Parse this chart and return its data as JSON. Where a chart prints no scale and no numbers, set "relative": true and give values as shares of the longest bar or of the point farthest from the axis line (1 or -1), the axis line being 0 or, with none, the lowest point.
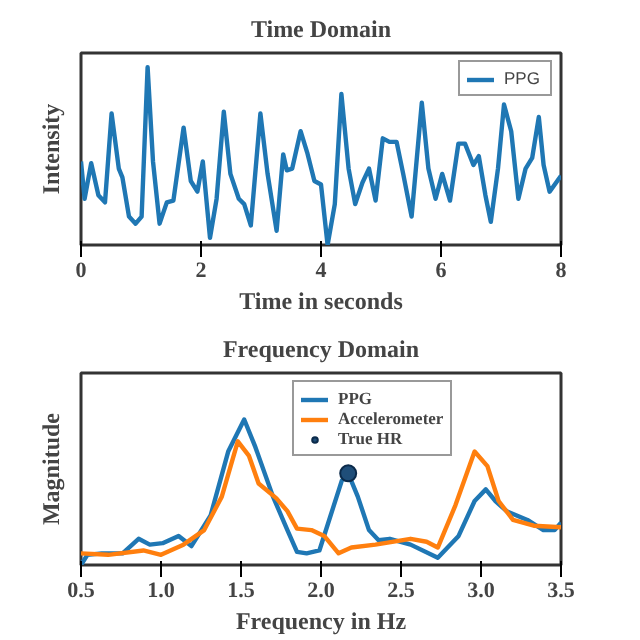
{
  "chart_data": [
    {
      "type": "line",
      "title": "Time Domain",
      "xlabel": "Time in seconds",
      "ylabel": "Intensity",
      "relative": true,
      "xlim": [
        0,
        8
      ],
      "xticks": [
        0,
        2,
        4,
        6,
        8
      ],
      "grid": false,
      "legend": "top right",
      "series": [
        {
          "name": "PPG",
          "color": "#1f77b4",
          "x": [
            0,
            0.06,
            0.17,
            0.29,
            0.4,
            0.51,
            0.63,
            0.69,
            0.8,
            0.91,
            1.01,
            1.11,
            1.2,
            1.31,
            1.43,
            1.54,
            1.71,
            1.83,
            1.94,
            2.03,
            2.15,
            2.26,
            2.38,
            2.49,
            2.63,
            2.72,
            2.83,
            2.99,
            3.11,
            3.26,
            3.37,
            3.43,
            3.52,
            3.66,
            3.77,
            3.89,
            4.0,
            4.11,
            4.23,
            4.34,
            4.46,
            4.57,
            4.69,
            4.8,
            4.91,
            5.03,
            5.14,
            5.26,
            5.37,
            5.51,
            5.68,
            5.79,
            5.91,
            6.02,
            6.15,
            6.29,
            6.4,
            6.54,
            6.63,
            6.74,
            6.83,
            6.95,
            7.05,
            7.17,
            7.29,
            7.41,
            7.52,
            7.63,
            7.71,
            7.81,
            8.0
          ],
          "values": [
            0.47,
            0.26,
            0.46,
            0.28,
            0.24,
            0.74,
            0.43,
            0.38,
            0.16,
            0.12,
            0.16,
            1.0,
            0.47,
            0.12,
            0.24,
            0.25,
            0.66,
            0.36,
            0.3,
            0.47,
            0.04,
            0.26,
            0.75,
            0.4,
            0.26,
            0.23,
            0.11,
            0.74,
            0.4,
            0.08,
            0.51,
            0.42,
            0.43,
            0.64,
            0.52,
            0.36,
            0.34,
            0.0,
            0.23,
            0.85,
            0.43,
            0.23,
            0.35,
            0.43,
            0.25,
            0.6,
            0.58,
            0.58,
            0.4,
            0.16,
            0.8,
            0.43,
            0.26,
            0.4,
            0.25,
            0.57,
            0.57,
            0.45,
            0.5,
            0.28,
            0.13,
            0.43,
            0.79,
            0.64,
            0.26,
            0.43,
            0.49,
            0.72,
            0.45,
            0.3,
            0.39
          ]
        }
      ]
    },
    {
      "type": "line",
      "title": "Frequency Domain",
      "xlabel": "Frequency in Hz",
      "ylabel": "Magnitude",
      "relative": true,
      "xlim": [
        0.5,
        3.5
      ],
      "xticks": [
        0.5,
        {
          "value": 1,
          "label": "1.0"
        },
        1.5,
        {
          "value": 2,
          "label": "2.0"
        },
        2.5,
        {
          "value": 3,
          "label": "3.0"
        },
        3.5
      ],
      "grid": false,
      "legend": "top",
      "series": [
        {
          "name": "PPG",
          "color": "#1f77b4",
          "x": [
            0.5,
            0.54,
            0.63,
            0.76,
            0.86,
            0.93,
            1.01,
            1.11,
            1.19,
            1.31,
            1.42,
            1.52,
            1.59,
            1.7,
            1.79,
            1.85,
            1.91,
            1.99,
            2.06,
            2.13,
            2.17,
            2.23,
            2.3,
            2.36,
            2.43,
            2.56,
            2.73,
            2.86,
            2.96,
            3.03,
            3.09,
            3.16,
            3.29,
            3.39,
            3.46,
            3.5
          ],
          "values": [
            0.0,
            0.07,
            0.08,
            0.08,
            0.18,
            0.14,
            0.15,
            0.2,
            0.13,
            0.34,
            0.78,
            1.0,
            0.81,
            0.47,
            0.24,
            0.09,
            0.08,
            0.1,
            0.34,
            0.58,
            0.63,
            0.47,
            0.24,
            0.17,
            0.18,
            0.14,
            0.05,
            0.2,
            0.44,
            0.52,
            0.44,
            0.37,
            0.31,
            0.24,
            0.24,
            0.29
          ]
        },
        {
          "name": "Accelerometer",
          "color": "#ff7f0e",
          "x": [
            0.5,
            0.67,
            0.89,
            1.0,
            1.14,
            1.27,
            1.38,
            1.48,
            1.55,
            1.61,
            1.72,
            1.79,
            1.85,
            1.94,
            2.02,
            2.11,
            2.19,
            2.34,
            2.56,
            2.66,
            2.73,
            2.84,
            2.96,
            3.04,
            3.11,
            3.2,
            3.33,
            3.5
          ],
          "values": [
            0.08,
            0.07,
            0.1,
            0.07,
            0.14,
            0.24,
            0.47,
            0.85,
            0.75,
            0.56,
            0.46,
            0.37,
            0.25,
            0.24,
            0.2,
            0.08,
            0.12,
            0.14,
            0.18,
            0.16,
            0.12,
            0.41,
            0.78,
            0.68,
            0.44,
            0.31,
            0.27,
            0.26
          ]
        },
        {
          "name": "True HR",
          "type": "scatter",
          "marker": "circle",
          "color": "#1f4e79",
          "x": [
            2.17
          ],
          "values": [
            0.63
          ]
        }
      ]
    }
  ]
}
